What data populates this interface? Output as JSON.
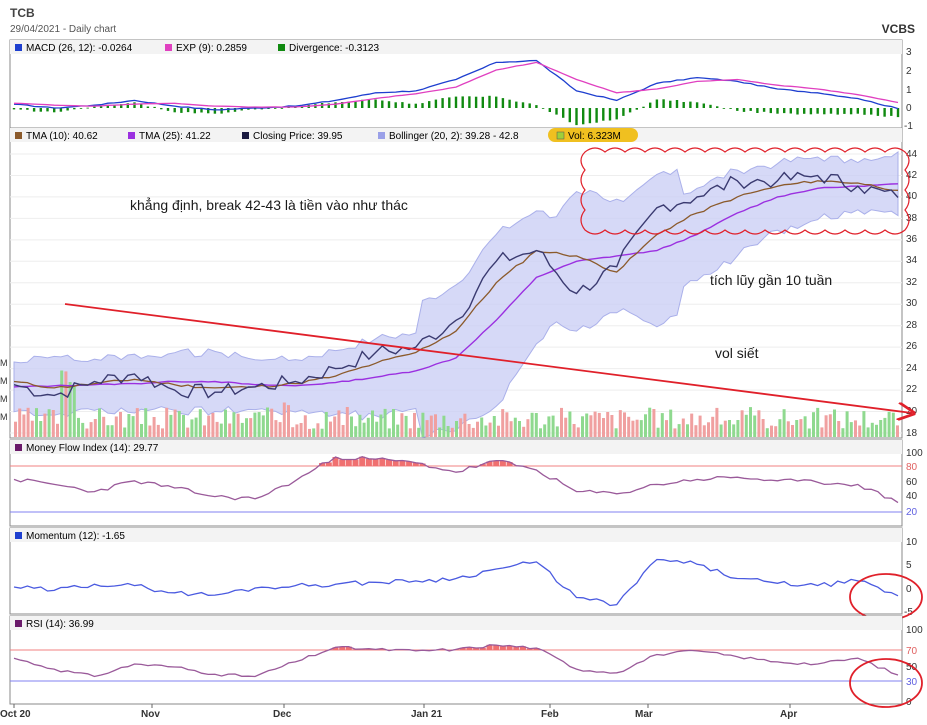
{
  "header": {
    "symbol": "TCB",
    "subtitle": "29/04/2021 - Daily chart",
    "brand": "VCBS"
  },
  "months": [
    "Oct 20",
    "Nov",
    "Dec",
    "Jan 21",
    "Feb",
    "Mar",
    "Apr"
  ],
  "panels": {
    "macd": {
      "legend": [
        {
          "label": "MACD (26, 12): -0.0264",
          "color": "#1e3fcf"
        },
        {
          "label": "EXP (9): 0.2859",
          "color": "#e040c0"
        },
        {
          "label": "Divergence: -0.3123",
          "color": "#108a10"
        }
      ],
      "ticks": [
        "3",
        "2",
        "1",
        "0",
        "-1"
      ]
    },
    "price": {
      "legend": [
        {
          "label": "TMA (10): 40.62",
          "color": "#8b5a2b"
        },
        {
          "label": "TMA (25): 41.22",
          "color": "#9b30e0"
        },
        {
          "label": "Closing Price: 39.95",
          "color": "#1a1a40"
        },
        {
          "label": "Bollinger (20, 2): 39.28 - 42.8",
          "color": "#9aa0e8"
        },
        {
          "label": "Vol: 6.323M",
          "color": "#9fcf3a"
        }
      ],
      "ticks": [
        "44",
        "42",
        "40",
        "38",
        "36",
        "34",
        "32",
        "30",
        "28",
        "26",
        "24",
        "22",
        "20",
        "18"
      ],
      "left_ticks": [
        "M",
        "M",
        "M",
        "M"
      ]
    },
    "mfi": {
      "legend": [
        {
          "label": "Money Flow Index (14): 29.77",
          "color": "#6a1a6a"
        }
      ],
      "ticks": [
        "100",
        "80",
        "60",
        "40",
        "20"
      ]
    },
    "momentum": {
      "legend": [
        {
          "label": "Momentum (12): -1.65",
          "color": "#1e3fcf"
        }
      ],
      "ticks": [
        "10",
        "5",
        "0",
        "-5"
      ]
    },
    "rsi": {
      "legend": [
        {
          "label": "RSI (14): 36.99",
          "color": "#6a1a6a"
        }
      ],
      "ticks": [
        "100",
        "70",
        "50",
        "30",
        "0"
      ]
    }
  },
  "annotations": {
    "breakout_note": "khẳng định, break 42-43 là tiền vào như thác",
    "accumulation_note": "tích lũy gần 10 tuần",
    "volume_note": "vol siết"
  },
  "chart_data": {
    "type": "line",
    "x": [
      "Oct 20",
      "Oct 20",
      "Oct 20",
      "Nov",
      "Nov",
      "Nov",
      "Nov",
      "Dec",
      "Dec",
      "Dec",
      "Dec",
      "Jan 21",
      "Jan 21",
      "Jan 21",
      "Feb",
      "Feb",
      "Mar",
      "Mar",
      "Mar",
      "Apr",
      "Apr",
      "Apr",
      "Apr"
    ],
    "series": [
      {
        "name": "Closing Price",
        "values": [
          22.5,
          21.5,
          22.8,
          23.5,
          22.0,
          21.8,
          22.3,
          22.8,
          24.0,
          25.5,
          26.0,
          28.5,
          34.0,
          35.0,
          31.0,
          33.5,
          39.0,
          40.0,
          41.5,
          41.5,
          42.0,
          41.0,
          39.95
        ]
      },
      {
        "name": "TMA (10)",
        "values": [
          22.8,
          22.2,
          22.6,
          23.0,
          22.5,
          22.2,
          22.3,
          22.6,
          23.3,
          24.5,
          25.5,
          27.5,
          32.0,
          35.0,
          34.5,
          33.0,
          36.5,
          38.5,
          40.0,
          41.0,
          41.5,
          41.3,
          40.62
        ]
      },
      {
        "name": "TMA (25)",
        "values": [
          22.3,
          22.4,
          22.5,
          22.6,
          22.8,
          22.8,
          22.5,
          22.4,
          22.7,
          23.2,
          23.8,
          25.0,
          28.5,
          32.5,
          34.0,
          34.5,
          35.0,
          36.5,
          38.5,
          40.0,
          40.8,
          41.0,
          41.22
        ]
      },
      {
        "name": "MACD (26, 12)",
        "values": [
          0.2,
          0.0,
          0.15,
          0.4,
          0.1,
          -0.1,
          0.0,
          0.1,
          0.4,
          0.8,
          0.9,
          1.5,
          2.4,
          2.5,
          0.9,
          0.4,
          1.3,
          1.6,
          1.4,
          1.0,
          0.8,
          0.5,
          -0.03
        ]
      },
      {
        "name": "EXP (9)",
        "values": [
          0.25,
          0.15,
          0.1,
          0.2,
          0.25,
          0.1,
          0.05,
          0.05,
          0.2,
          0.5,
          0.75,
          1.1,
          2.0,
          2.4,
          1.5,
          0.8,
          1.0,
          1.4,
          1.5,
          1.2,
          1.0,
          0.7,
          0.29
        ]
      },
      {
        "name": "Money Flow Index (14)",
        "values": [
          62,
          55,
          45,
          60,
          50,
          38,
          35,
          60,
          93,
          90,
          85,
          72,
          88,
          75,
          45,
          42,
          55,
          62,
          65,
          60,
          58,
          55,
          29.77
        ]
      },
      {
        "name": "Momentum (12)",
        "values": [
          0.2,
          -0.5,
          0.8,
          0.5,
          -1.0,
          -1.5,
          0.0,
          0.5,
          0.8,
          1.2,
          1.5,
          2.0,
          4.0,
          5.5,
          -2.0,
          -3.5,
          6.0,
          5.0,
          2.0,
          1.0,
          0.5,
          1.5,
          -1.65
        ]
      },
      {
        "name": "RSI (14)",
        "values": [
          60,
          45,
          35,
          52,
          48,
          38,
          35,
          55,
          75,
          72,
          70,
          72,
          78,
          74,
          45,
          40,
          65,
          70,
          62,
          55,
          52,
          60,
          36.99
        ]
      }
    ],
    "ylim_price": [
      18,
      44
    ]
  }
}
